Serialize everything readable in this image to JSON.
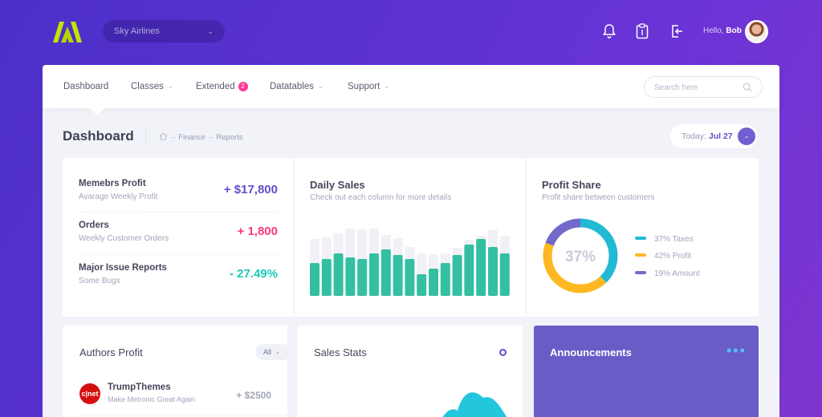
{
  "header": {
    "org_select": "Sky Airlines",
    "greeting": "Hello,",
    "user_name": "Bob",
    "icons": [
      "bell-icon",
      "clipboard-icon",
      "logout-icon"
    ]
  },
  "nav": {
    "items": [
      {
        "label": "Dashboard"
      },
      {
        "label": "Classes"
      },
      {
        "label": "Extended",
        "badge": "2"
      },
      {
        "label": "Datatables"
      },
      {
        "label": "Support"
      }
    ],
    "search_placeholder": "Search here"
  },
  "subheader": {
    "title": "Dashboard",
    "breadcrumbs": [
      "Finance",
      "Reports"
    ],
    "today_label": "Today:",
    "today_value": "Jul 27"
  },
  "metrics": [
    {
      "title": "Memebrs Profit",
      "subtitle": "Avarage Weekly Profit",
      "value": "+ $17,800",
      "color": "#5d4fc9"
    },
    {
      "title": "Orders",
      "subtitle": "Weekly Customer Orders",
      "value": "+ 1,800",
      "color": "#fd397a"
    },
    {
      "title": "Major Issue Reports",
      "subtitle": "Some Bugs",
      "value": "- 27.49%",
      "color": "#1dc9b7"
    }
  ],
  "daily_sales": {
    "title": "Daily Sales",
    "subtitle": "Check out each column for more details",
    "chart_data": {
      "type": "bar",
      "series": [
        {
          "values": [
            0.41,
            0.46,
            0.53,
            0.48,
            0.46,
            0.53,
            0.58,
            0.51,
            0.46,
            0.27,
            0.34,
            0.41,
            0.51,
            0.64,
            0.71,
            0.61,
            0.53
          ]
        },
        {
          "values": [
            0.71,
            0.73,
            0.78,
            0.84,
            0.83,
            0.84,
            0.76,
            0.72,
            0.61,
            0.53,
            0.52,
            0.53,
            0.6,
            0.7,
            0.75,
            0.82,
            0.75
          ]
        }
      ],
      "colors": [
        "#34bfa3",
        "#f0f0f6"
      ]
    }
  },
  "profit_share": {
    "title": "Profit Share",
    "subtitle": "Profit share between customers",
    "center_label": "37%",
    "chart_data": {
      "type": "pie",
      "slices": [
        {
          "label": "37% Taxes",
          "value": 37,
          "color": "#22b9d5"
        },
        {
          "label": "42% Profit",
          "value": 42,
          "color": "#ffb822"
        },
        {
          "label": "19% Amount",
          "value": 19,
          "color": "#716aca"
        }
      ]
    }
  },
  "authors": {
    "title": "Authors Profit",
    "filter": "All",
    "rows": [
      {
        "logo_text": "c|net",
        "name": "TrumpThemes",
        "subtitle": "Make Metronic Great Again",
        "value": "+ $2500"
      }
    ]
  },
  "sales_stats": {
    "title": "Sales Stats"
  },
  "announcements": {
    "title": "Announcements"
  }
}
